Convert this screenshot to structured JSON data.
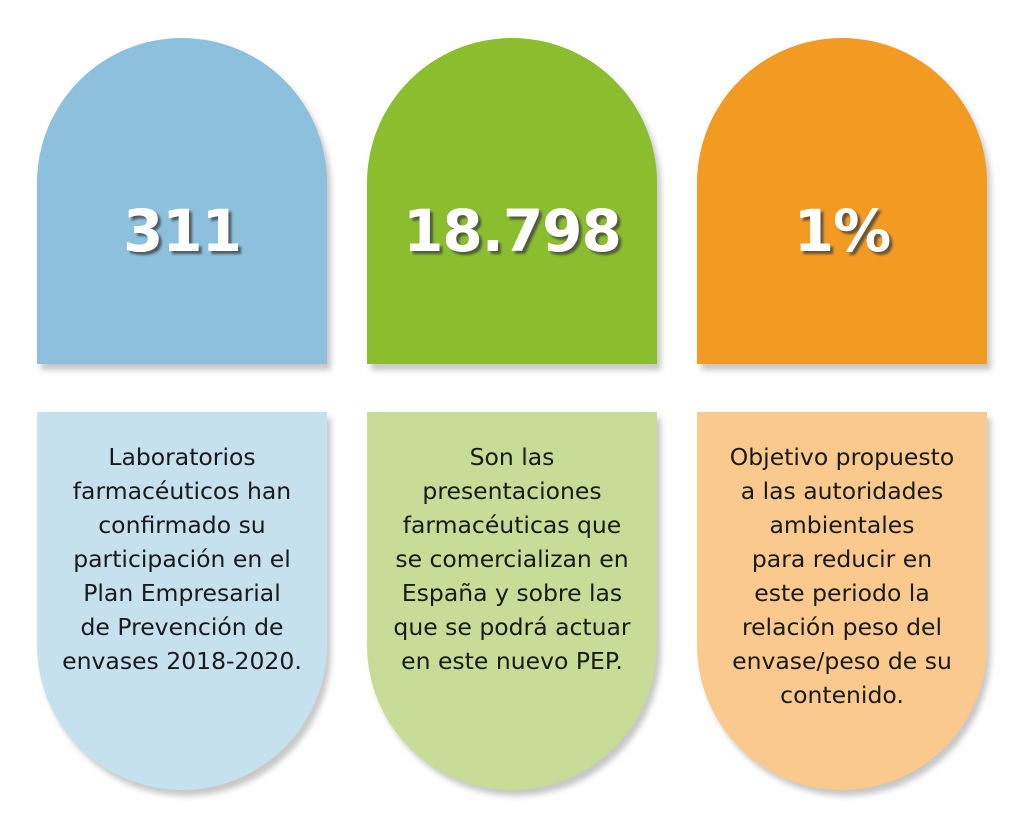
{
  "colors": {
    "blue": "#8cc0dc",
    "blue_light": "#c5e1ee",
    "green": "#8bbe2f",
    "green_light": "#c6dc97",
    "orange": "#f39a23",
    "orange_light": "#fac98e"
  },
  "cards": [
    {
      "value": "311",
      "description": "Laboratorios\nfarmacéuticos han\nconfirmado su\nparticipación en el\nPlan Empresarial\nde Prevención de\nenvases 2018-2020."
    },
    {
      "value": "18.798",
      "description": "Son las\npresentaciones\nfarmacéuticas que\nse comercializan en\nEspaña y sobre las\nque se podrá actuar\nen este nuevo PEP."
    },
    {
      "value": "1%",
      "description": "Objetivo propuesto\na las autoridades\nambientales\npara reducir en\neste periodo la\nrelación peso del\nenvase/peso de su\ncontenido."
    }
  ]
}
